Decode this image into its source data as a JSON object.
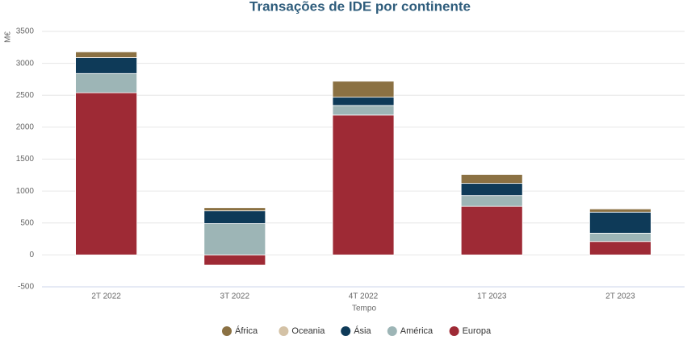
{
  "chart_data": {
    "type": "bar",
    "stacked": true,
    "title": "Transações de IDE por continente",
    "y_label": "M€",
    "x_label": "Tempo",
    "categories": [
      "2T 2022",
      "3T 2022",
      "4T 2022",
      "1T 2023",
      "2T 2023"
    ],
    "series": [
      {
        "name": "África",
        "color": "#8b7143",
        "values": [
          90,
          50,
          250,
          140,
          50
        ]
      },
      {
        "name": "Oceania",
        "color": "#d4c2a6",
        "values": [
          0,
          0,
          0,
          0,
          0
        ]
      },
      {
        "name": "Ásia",
        "color": "#0e3a58",
        "values": [
          250,
          200,
          130,
          190,
          330
        ]
      },
      {
        "name": "América",
        "color": "#9db5b6",
        "values": [
          300,
          490,
          150,
          170,
          130
        ]
      },
      {
        "name": "Europa",
        "color": "#9e2a35",
        "values": [
          2540,
          -160,
          2190,
          760,
          210
        ]
      }
    ],
    "ylim": [
      -500,
      3500
    ],
    "yticks": [
      -500,
      0,
      500,
      1000,
      1500,
      2000,
      2500,
      3000,
      3500
    ],
    "grid": true,
    "legend": "bottom"
  }
}
